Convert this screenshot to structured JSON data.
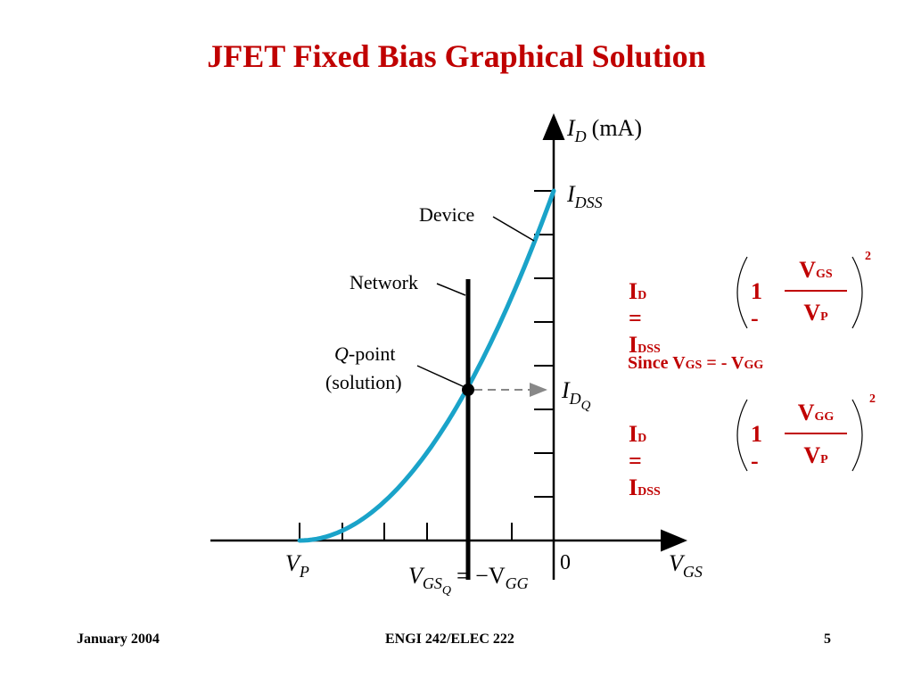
{
  "slide": {
    "title": "JFET Fixed Bias Graphical Solution"
  },
  "diagram": {
    "y_axis_label": {
      "main": "I",
      "sub": "D",
      "unit": "(mA)"
    },
    "x_axis_label": {
      "main": "V",
      "sub": "GS"
    },
    "idss_label": {
      "main": "I",
      "sub": "DSS"
    },
    "idq_label": {
      "main": "I",
      "sub": "D",
      "subsub": "Q"
    },
    "vp_label": {
      "main": "V",
      "sub": "P"
    },
    "origin_label": "0",
    "vgsq_label": {
      "v": "V",
      "gs": "GS",
      "q": "Q",
      "eq": "= −V",
      "gg": "GG"
    },
    "device_label": "Device",
    "network_label": "Network",
    "qpoint_label_line1_italic": "Q",
    "qpoint_label_line1_rest": "-point",
    "qpoint_label_line2": "(solution)",
    "curve_color": "#1aa3c9"
  },
  "equations": {
    "eq1": {
      "lhs_i": "I",
      "lhs_d": "D",
      "eq": " = I",
      "idss": "DSS",
      "one": "1 -",
      "num_v": "V",
      "num_sub": "GS",
      "den_v": "V",
      "den_sub": "P",
      "power": "2"
    },
    "since": {
      "text": "Since V",
      "sub1": "GS",
      "mid": " = - V",
      "sub2": "GG"
    },
    "eq2": {
      "lhs_i": "I",
      "lhs_d": "D",
      "eq": " = I",
      "idss": "DSS",
      "one": "1 -",
      "num_v": "V",
      "num_sub": "GG",
      "den_v": "V",
      "den_sub": "P",
      "power": "2"
    }
  },
  "footer": {
    "date": "January 2004",
    "course": "ENGI 242/ELEC 222",
    "page": "5"
  }
}
